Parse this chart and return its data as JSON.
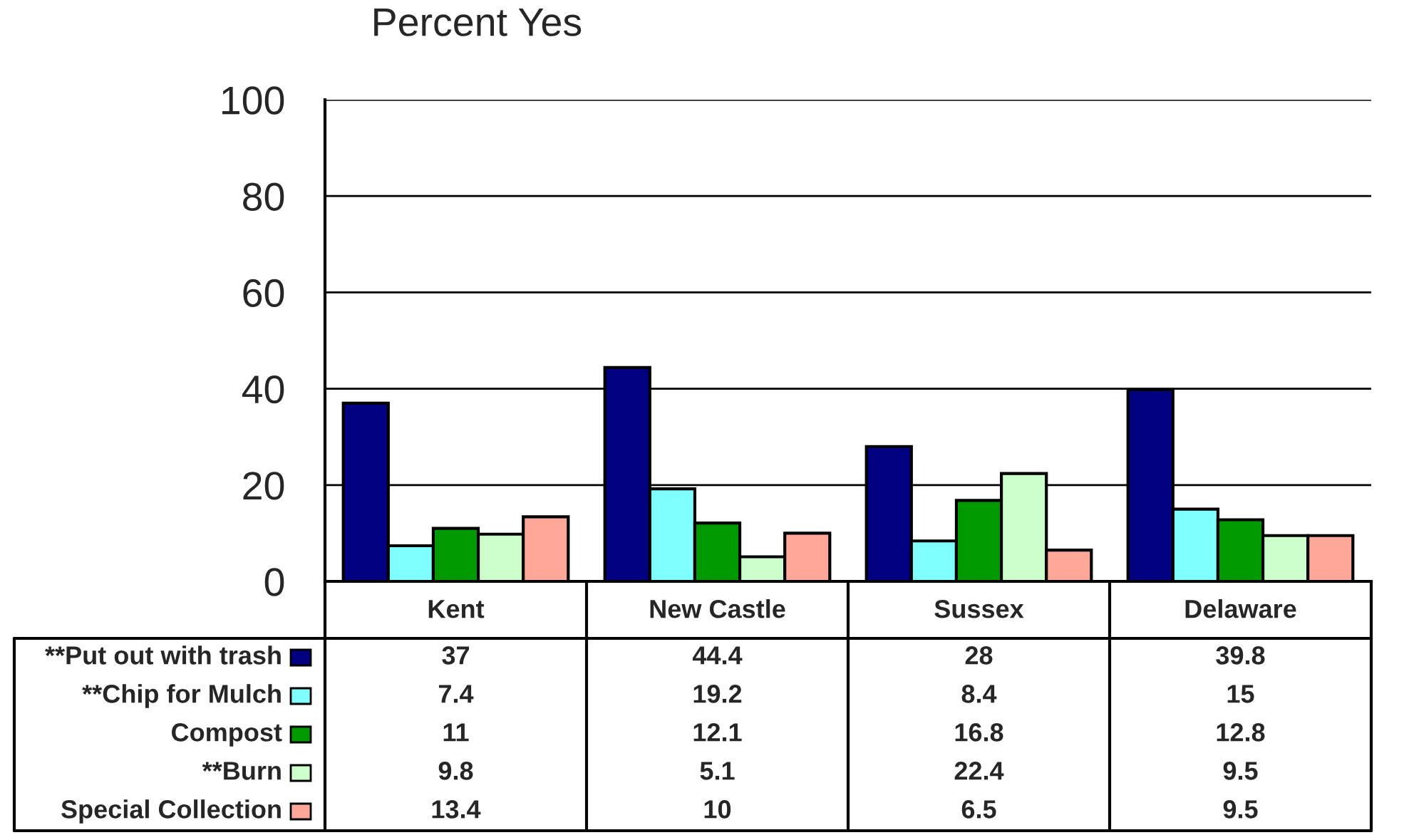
{
  "chart_data": {
    "type": "bar",
    "ylabel": "Percent Yes",
    "categories": [
      "Kent",
      "New Castle",
      "Sussex",
      "Delaware"
    ],
    "series": [
      {
        "name": "**Put out with trash",
        "color": "#000080",
        "values": [
          37,
          44.4,
          28,
          39.8
        ]
      },
      {
        "name": "**Chip for Mulch",
        "color": "#80ffff",
        "values": [
          7.4,
          19.2,
          8.4,
          15
        ]
      },
      {
        "name": "Compost",
        "color": "#009900",
        "values": [
          11,
          12.1,
          16.8,
          12.8
        ]
      },
      {
        "name": "**Burn",
        "color": "#ccffcc",
        "values": [
          9.8,
          5.1,
          22.4,
          9.5
        ]
      },
      {
        "name": "Special Collection",
        "color": "#ffa899",
        "values": [
          13.4,
          10,
          6.5,
          9.5
        ]
      }
    ],
    "ylim": [
      0,
      100
    ],
    "yticks": [
      0,
      20,
      40,
      60,
      80,
      100
    ],
    "grid": "y",
    "legend": "bottom",
    "data_labels": true
  }
}
